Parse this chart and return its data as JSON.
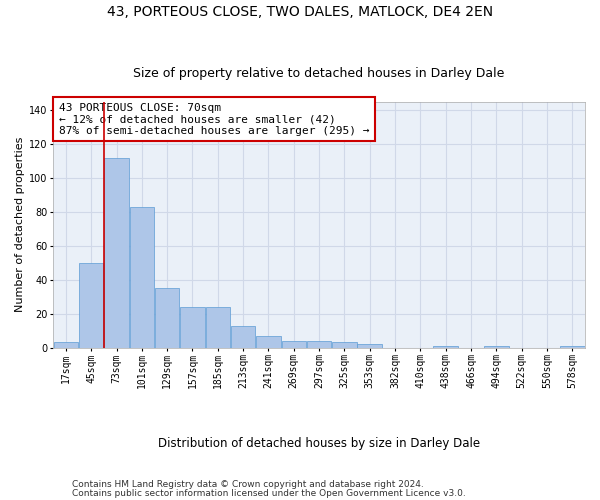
{
  "title1": "43, PORTEOUS CLOSE, TWO DALES, MATLOCK, DE4 2EN",
  "title2": "Size of property relative to detached houses in Darley Dale",
  "xlabel": "Distribution of detached houses by size in Darley Dale",
  "ylabel": "Number of detached properties",
  "bar_color": "#aec6e8",
  "bar_edge_color": "#5b9bd5",
  "grid_color": "#d0d8e8",
  "background_color": "#eaf0f8",
  "vline_color": "#cc0000",
  "annotation_box_color": "#cc0000",
  "categories": [
    "17sqm",
    "45sqm",
    "73sqm",
    "101sqm",
    "129sqm",
    "157sqm",
    "185sqm",
    "213sqm",
    "241sqm",
    "269sqm",
    "297sqm",
    "325sqm",
    "353sqm",
    "382sqm",
    "410sqm",
    "438sqm",
    "466sqm",
    "494sqm",
    "522sqm",
    "550sqm",
    "578sqm"
  ],
  "values": [
    3,
    50,
    112,
    83,
    35,
    24,
    24,
    13,
    7,
    4,
    4,
    3,
    2,
    0,
    0,
    1,
    0,
    1,
    0,
    0,
    1
  ],
  "vline_x": 1.5,
  "annotation_text": "43 PORTEOUS CLOSE: 70sqm\n← 12% of detached houses are smaller (42)\n87% of semi-detached houses are larger (295) →",
  "ylim": [
    0,
    145
  ],
  "yticks": [
    0,
    20,
    40,
    60,
    80,
    100,
    120,
    140
  ],
  "footer1": "Contains HM Land Registry data © Crown copyright and database right 2024.",
  "footer2": "Contains public sector information licensed under the Open Government Licence v3.0.",
  "title1_fontsize": 10,
  "title2_fontsize": 9,
  "tick_fontsize": 7,
  "ylabel_fontsize": 8,
  "xlabel_fontsize": 8.5,
  "annotation_fontsize": 8,
  "footer_fontsize": 6.5
}
